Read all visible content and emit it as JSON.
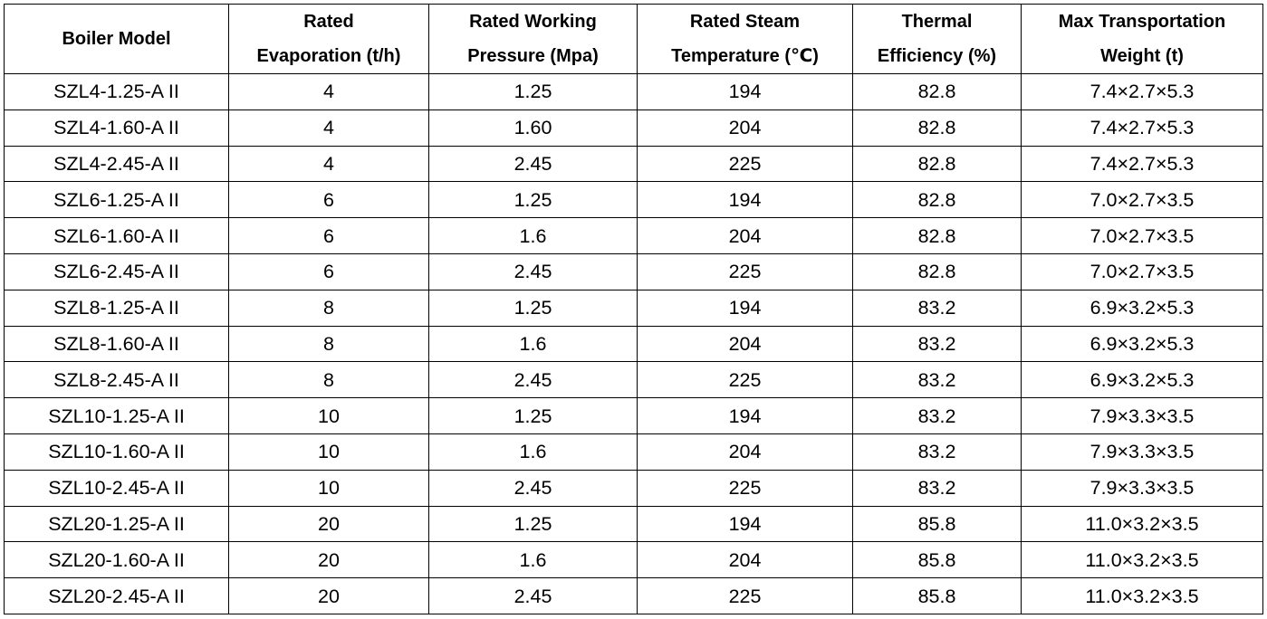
{
  "table": {
    "headers": [
      [
        "Boiler Model"
      ],
      [
        "Rated",
        "Evaporation (t/h)"
      ],
      [
        "Rated Working",
        "Pressure (Mpa)"
      ],
      [
        "Rated Steam",
        "Temperature (℃)"
      ],
      [
        "Thermal",
        "Efficiency (%)"
      ],
      [
        "Max Transportation",
        "Weight (t)"
      ]
    ],
    "rows": [
      [
        "SZL4-1.25-A II",
        "4",
        "1.25",
        "194",
        "82.8",
        "7.4×2.7×5.3"
      ],
      [
        "SZL4-1.60-A II",
        "4",
        "1.60",
        "204",
        "82.8",
        "7.4×2.7×5.3"
      ],
      [
        "SZL4-2.45-A II",
        "4",
        "2.45",
        "225",
        "82.8",
        "7.4×2.7×5.3"
      ],
      [
        "SZL6-1.25-A II",
        "6",
        "1.25",
        "194",
        "82.8",
        "7.0×2.7×3.5"
      ],
      [
        "SZL6-1.60-A II",
        "6",
        "1.6",
        "204",
        "82.8",
        "7.0×2.7×3.5"
      ],
      [
        "SZL6-2.45-A II",
        "6",
        "2.45",
        "225",
        "82.8",
        "7.0×2.7×3.5"
      ],
      [
        "SZL8-1.25-A II",
        "8",
        "1.25",
        "194",
        "83.2",
        "6.9×3.2×5.3"
      ],
      [
        "SZL8-1.60-A II",
        "8",
        "1.6",
        "204",
        "83.2",
        "6.9×3.2×5.3"
      ],
      [
        "SZL8-2.45-A II",
        "8",
        "2.45",
        "225",
        "83.2",
        "6.9×3.2×5.3"
      ],
      [
        "SZL10-1.25-A II",
        "10",
        "1.25",
        "194",
        "83.2",
        "7.9×3.3×3.5"
      ],
      [
        "SZL10-1.60-A II",
        "10",
        "1.6",
        "204",
        "83.2",
        "7.9×3.3×3.5"
      ],
      [
        "SZL10-2.45-A II",
        "10",
        "2.45",
        "225",
        "83.2",
        "7.9×3.3×3.5"
      ],
      [
        "SZL20-1.25-A II",
        "20",
        "1.25",
        "194",
        "85.8",
        "11.0×3.2×3.5"
      ],
      [
        "SZL20-1.60-A II",
        "20",
        "1.6",
        "204",
        "85.8",
        "11.0×3.2×3.5"
      ],
      [
        "SZL20-2.45-A II",
        "20",
        "2.45",
        "225",
        "85.8",
        "11.0×3.2×3.5"
      ]
    ]
  }
}
